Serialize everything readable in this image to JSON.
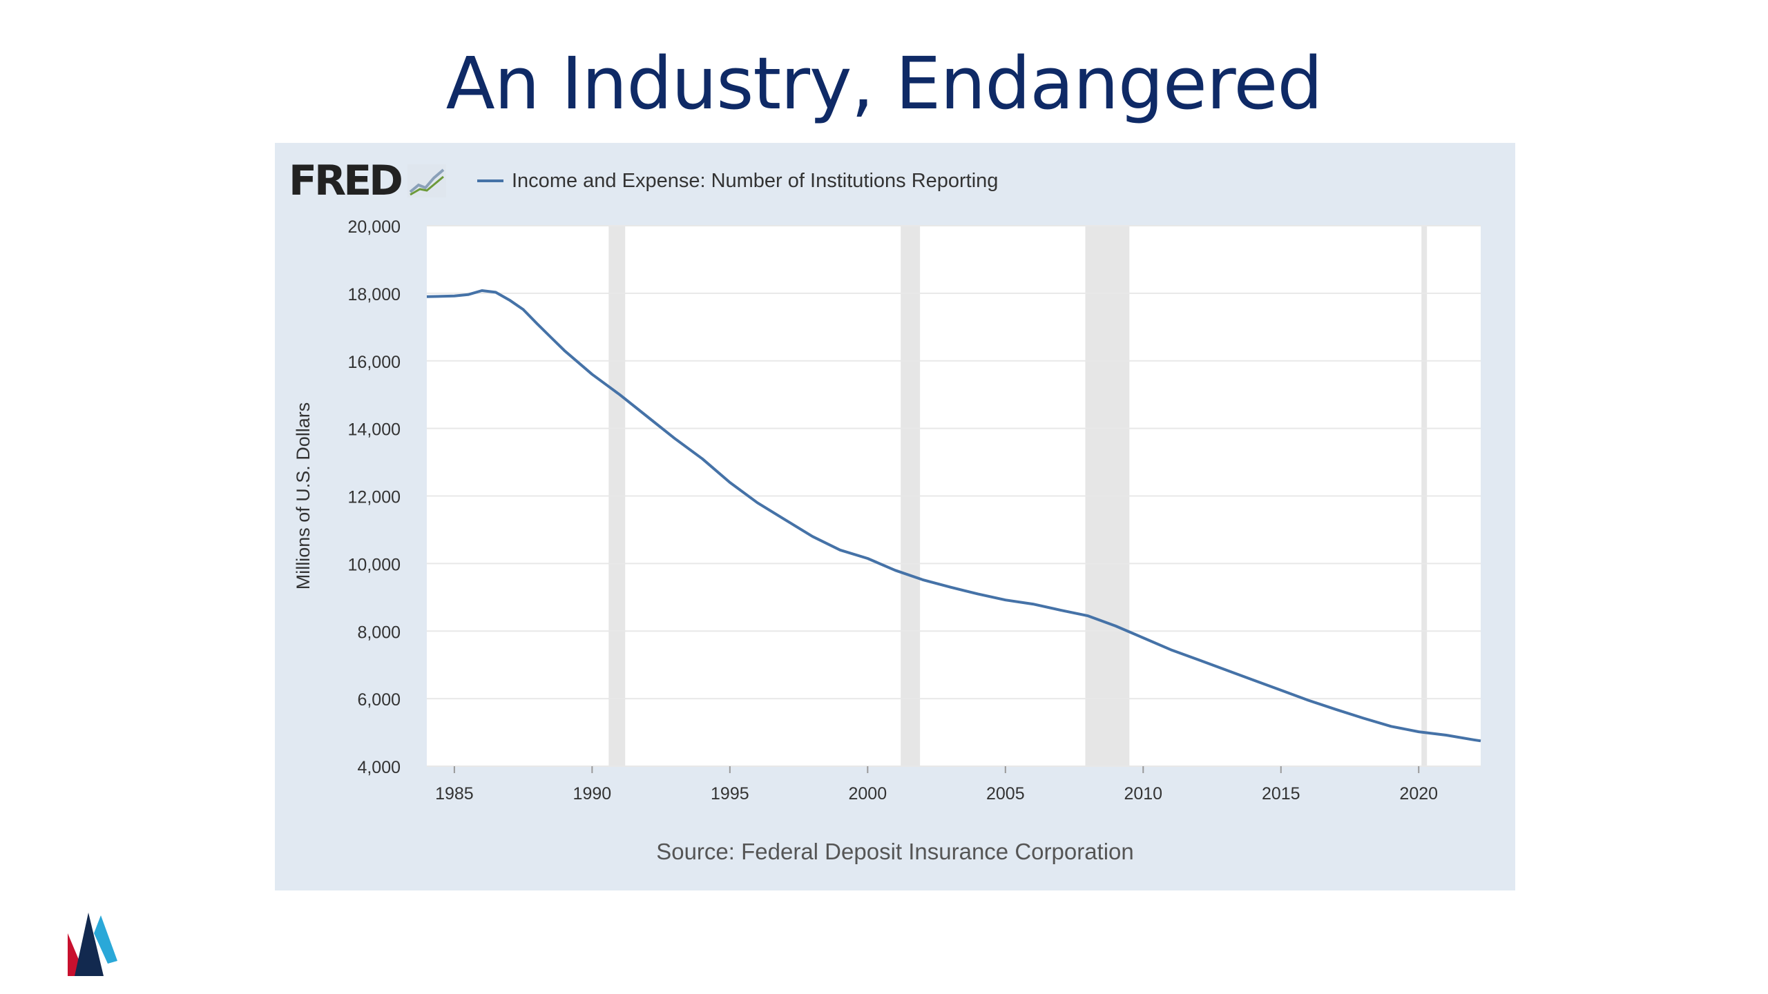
{
  "slide": {
    "title": "An Industry, Endangered"
  },
  "logo": {
    "text": "FRED",
    "icon": "fred-chart-icon"
  },
  "chart_data": {
    "type": "line",
    "series": [
      {
        "name": "Income and Expense: Number of Institutions Reporting",
        "color": "#4572a7",
        "points": [
          [
            1984.0,
            17900
          ],
          [
            1985.0,
            17920
          ],
          [
            1985.5,
            17960
          ],
          [
            1986.0,
            18080
          ],
          [
            1986.5,
            18030
          ],
          [
            1987.0,
            17800
          ],
          [
            1987.5,
            17520
          ],
          [
            1988.0,
            17100
          ],
          [
            1988.5,
            16700
          ],
          [
            1989.0,
            16300
          ],
          [
            1990.0,
            15600
          ],
          [
            1991.0,
            15000
          ],
          [
            1992.0,
            14350
          ],
          [
            1993.0,
            13700
          ],
          [
            1994.0,
            13100
          ],
          [
            1995.0,
            12400
          ],
          [
            1996.0,
            11800
          ],
          [
            1997.0,
            11300
          ],
          [
            1998.0,
            10800
          ],
          [
            1999.0,
            10400
          ],
          [
            2000.0,
            10150
          ],
          [
            2001.0,
            9800
          ],
          [
            2002.0,
            9520
          ],
          [
            2003.0,
            9300
          ],
          [
            2004.0,
            9100
          ],
          [
            2005.0,
            8920
          ],
          [
            2006.0,
            8800
          ],
          [
            2007.0,
            8620
          ],
          [
            2008.0,
            8450
          ],
          [
            2009.0,
            8150
          ],
          [
            2010.0,
            7800
          ],
          [
            2011.0,
            7450
          ],
          [
            2012.0,
            7150
          ],
          [
            2013.0,
            6850
          ],
          [
            2014.0,
            6550
          ],
          [
            2015.0,
            6250
          ],
          [
            2016.0,
            5950
          ],
          [
            2017.0,
            5680
          ],
          [
            2018.0,
            5420
          ],
          [
            2019.0,
            5180
          ],
          [
            2020.0,
            5020
          ],
          [
            2021.0,
            4920
          ],
          [
            2022.0,
            4780
          ],
          [
            2022.25,
            4750
          ]
        ]
      }
    ],
    "recessions": [
      [
        1990.6,
        1991.2
      ],
      [
        2001.2,
        2001.9
      ],
      [
        2007.9,
        2009.5
      ],
      [
        2020.1,
        2020.3
      ]
    ],
    "xlim": [
      1984.0,
      2022.25
    ],
    "ylim": [
      4000,
      20000
    ],
    "xticks": [
      1985,
      1990,
      1995,
      2000,
      2005,
      2010,
      2015,
      2020
    ],
    "yticks": [
      4000,
      6000,
      8000,
      10000,
      12000,
      14000,
      16000,
      18000,
      20000
    ],
    "ytick_labels": [
      "4,000",
      "6,000",
      "8,000",
      "10,000",
      "12,000",
      "14,000",
      "16,000",
      "18,000",
      "20,000"
    ],
    "ylabel": "Millions of U.S. Dollars",
    "source": "Source: Federal Deposit Insurance Corporation",
    "grid": true,
    "legend_position": "top-left"
  }
}
